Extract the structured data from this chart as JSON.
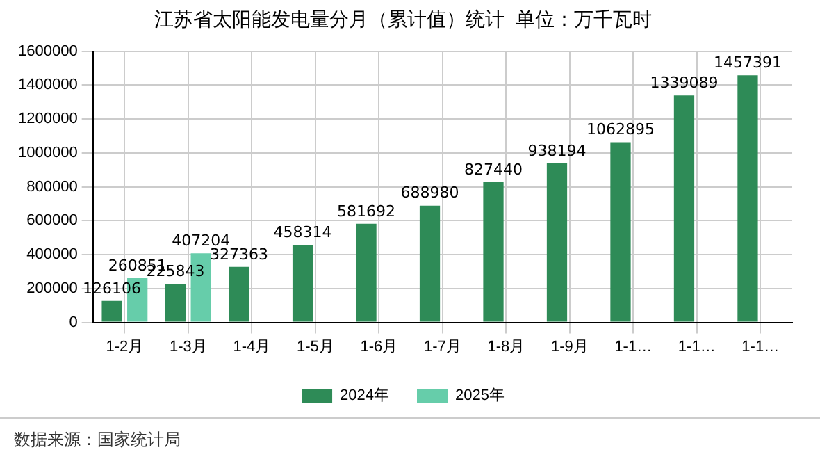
{
  "chart_data": {
    "type": "bar",
    "title": "江苏省太阳能发电量分月（累计值）统计  单位：万千瓦时",
    "categories": [
      "1-2月",
      "1-3月",
      "1-4月",
      "1-5月",
      "1-6月",
      "1-7月",
      "1-8月",
      "1-9月",
      "1-1…",
      "1-1…",
      "1-1…"
    ],
    "series": [
      {
        "name": "2024年",
        "color": "#2e8b57",
        "values": [
          126106,
          225843,
          327363,
          458314,
          581692,
          688980,
          827440,
          938194,
          1062895,
          1339089,
          1457391
        ]
      },
      {
        "name": "2025年",
        "color": "#66cdaa",
        "values": [
          260851,
          407204,
          null,
          null,
          null,
          null,
          null,
          null,
          null,
          null,
          null
        ]
      }
    ],
    "ylim": [
      0,
      1600000
    ],
    "yticks": [
      0,
      200000,
      400000,
      600000,
      800000,
      1000000,
      1200000,
      1400000,
      1600000
    ],
    "grid": true,
    "legend": "bottom",
    "data_labels": true,
    "annotations": [
      "数据来源：国家统计局"
    ]
  }
}
